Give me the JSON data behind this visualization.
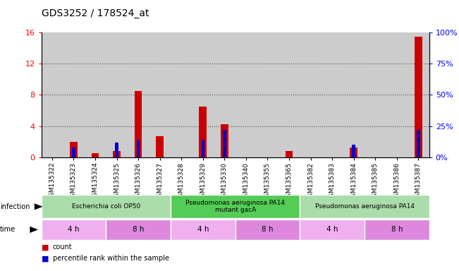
{
  "title": "GDS3252 / 178524_at",
  "samples": [
    "GSM135322",
    "GSM135323",
    "GSM135324",
    "GSM135325",
    "GSM135326",
    "GSM135327",
    "GSM135328",
    "GSM135329",
    "GSM135330",
    "GSM135340",
    "GSM135355",
    "GSM135365",
    "GSM135382",
    "GSM135383",
    "GSM135384",
    "GSM135385",
    "GSM135386",
    "GSM135387"
  ],
  "counts": [
    0,
    2.0,
    0.5,
    0.8,
    8.5,
    2.7,
    0,
    6.5,
    4.2,
    0,
    0,
    0.8,
    0,
    0,
    1.2,
    0,
    0,
    15.5
  ],
  "percentiles": [
    0,
    8,
    0,
    12,
    14,
    0,
    0,
    14,
    22,
    0,
    0,
    0,
    0,
    0,
    10,
    0,
    0,
    22
  ],
  "bar_width": 0.5,
  "ylim_left": [
    0,
    16
  ],
  "ylim_right": [
    0,
    100
  ],
  "yticks_left": [
    0,
    4,
    8,
    12,
    16
  ],
  "yticks_right": [
    0,
    25,
    50,
    75,
    100
  ],
  "infection_groups": [
    {
      "label": "Escherichia coli OP50",
      "start": 0,
      "end": 6,
      "color": "#aaddaa"
    },
    {
      "label": "Pseudomonas aeruginosa PA14\nmutant gacA",
      "start": 6,
      "end": 12,
      "color": "#55cc55"
    },
    {
      "label": "Pseudomonas aeruginosa PA14",
      "start": 12,
      "end": 18,
      "color": "#aaddaa"
    }
  ],
  "time_groups": [
    {
      "label": "4 h",
      "start": 0,
      "end": 3,
      "color": "#f0b0f0"
    },
    {
      "label": "8 h",
      "start": 3,
      "end": 6,
      "color": "#dd88dd"
    },
    {
      "label": "4 h",
      "start": 6,
      "end": 9,
      "color": "#f0b0f0"
    },
    {
      "label": "8 h",
      "start": 9,
      "end": 12,
      "color": "#dd88dd"
    },
    {
      "label": "4 h",
      "start": 12,
      "end": 15,
      "color": "#f0b0f0"
    },
    {
      "label": "8 h",
      "start": 15,
      "end": 18,
      "color": "#dd88dd"
    }
  ],
  "count_color": "#CC0000",
  "percentile_color": "#0000CC",
  "tick_label_fontsize": 6.5,
  "title_fontsize": 10,
  "bg_color": "#FFFFFF",
  "grid_color": "#555555",
  "sample_bg": "#CCCCCC"
}
